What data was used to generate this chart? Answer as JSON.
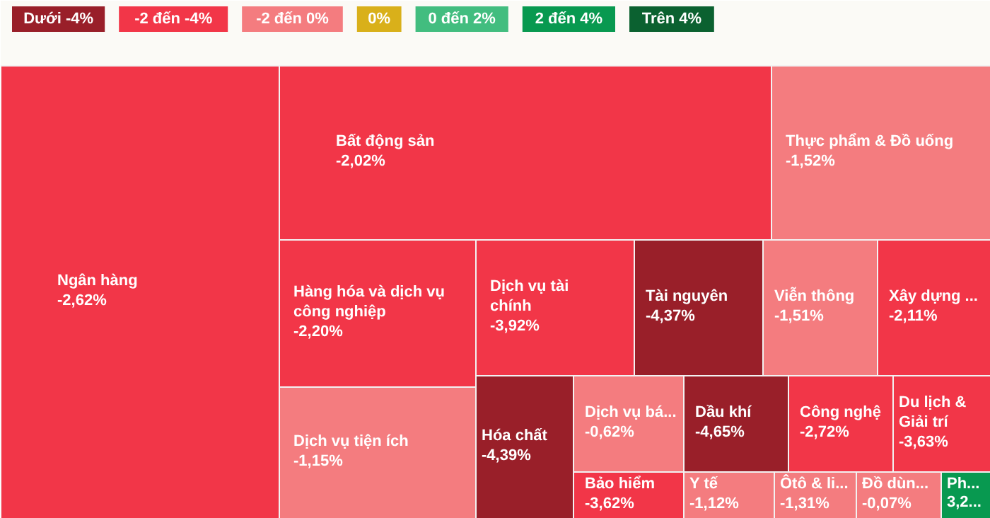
{
  "chart_data": [
    {
      "type": "other",
      "categories": [
        "Dưới -4%",
        "-2 đến -4%",
        "-2 đến 0%",
        "0%",
        "0 đến 2%",
        "2 đến 4%",
        "Trên 4%"
      ],
      "colors": [
        "#991f29",
        "#f23648",
        "#f47c7f",
        "#d9b01a",
        "#42bd7f",
        "#089950",
        "#0b6130"
      ]
    },
    {
      "type": "other",
      "categories": [
        "Ngân hàng",
        "Bất động sản",
        "Thực phẩm & Đồ uống",
        "Hàng hóa và dịch vụ công nghiệp",
        "Dịch vụ tài chính",
        "Tài nguyên",
        "Viễn thông",
        "Xây dựng ...",
        "Dịch vụ tiện ích",
        "Hóa chất",
        "Dịch vụ bá...",
        "Dầu khí",
        "Công nghệ",
        "Du lịch & Giải trí",
        "Bảo hiểm",
        "Y tế",
        "Ôtô & li...",
        "Đồ dùn...",
        "Ph..."
      ],
      "values": [
        -2.62,
        -2.02,
        -1.52,
        -2.2,
        -3.92,
        -4.37,
        -1.51,
        -2.11,
        -1.15,
        -4.39,
        -0.62,
        -4.65,
        -2.72,
        -3.63,
        -3.62,
        -1.12,
        -1.31,
        -0.07,
        3.2
      ],
      "value_labels": [
        "-2,62%",
        "-2,02%",
        "-1,52%",
        "-2,20%",
        "-3,92%",
        "-4,37%",
        "-1,51%",
        "-2,11%",
        "-1,15%",
        "-4,39%",
        "-0,62%",
        "-4,65%",
        "-2,72%",
        "-3,63%",
        "-3,62%",
        "-1,12%",
        "-1,31%",
        "-0,07%",
        "3,2..."
      ]
    }
  ]
}
